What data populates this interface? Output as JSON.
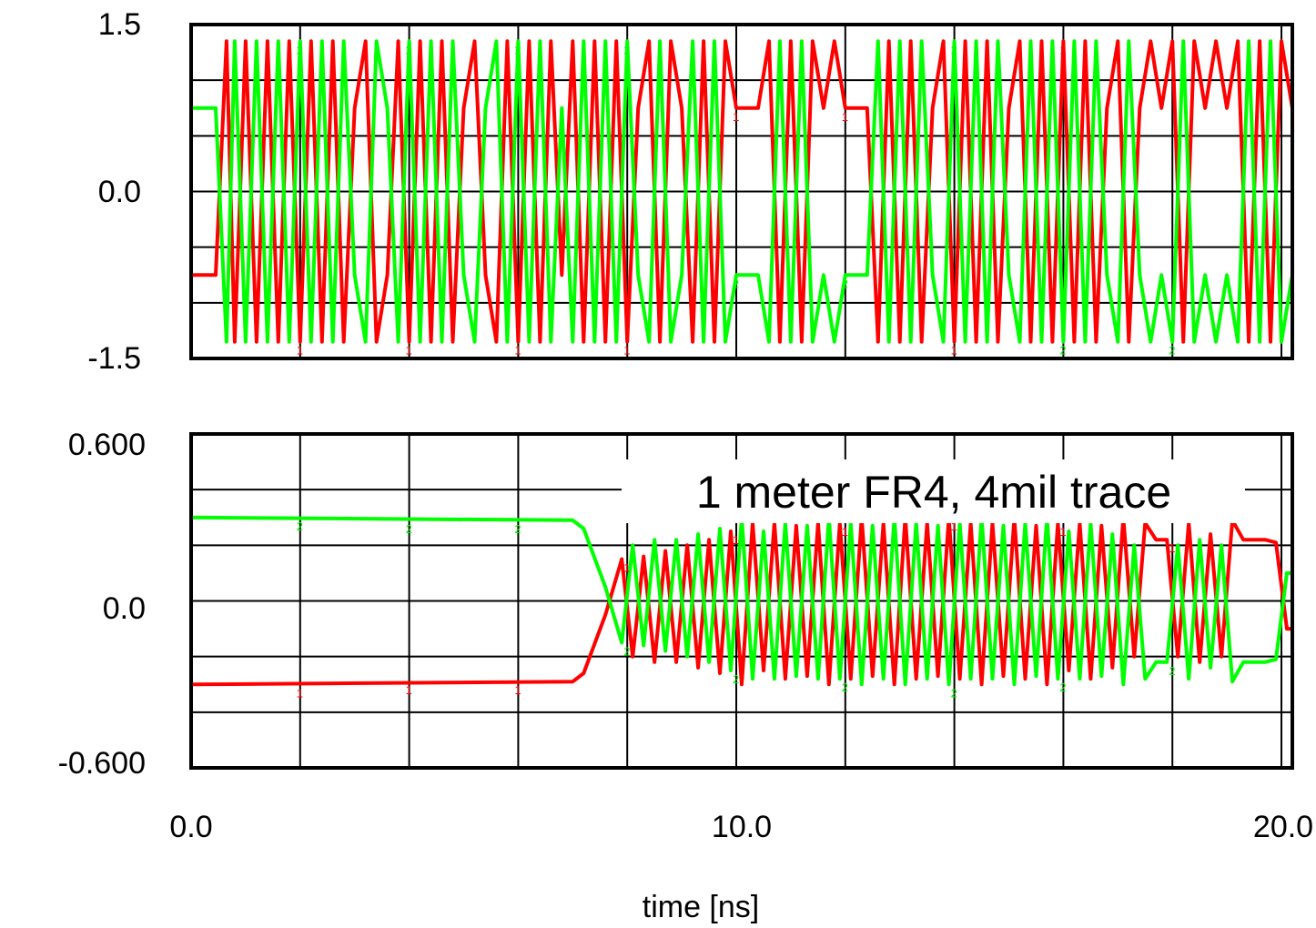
{
  "chart_data": [
    {
      "type": "line",
      "title": "",
      "xlabel": "",
      "ylabel": "",
      "xlim": [
        0,
        20.2
      ],
      "ylim": [
        -1.5,
        1.5
      ],
      "ytick_labels": [
        "1.5",
        "0.0",
        "-1.5"
      ],
      "grid": true,
      "series": [
        {
          "id": "1",
          "color": "#ff0000",
          "base_level": -0.75,
          "description_values": "4-level (PAM-4) digital signal, levels -1.35, -0.75, 0.75, 1.35",
          "x": [
            0,
            0.45,
            0.65,
            0.8,
            1.0,
            1.2,
            1.4,
            1.6,
            1.8,
            2.0,
            2.2,
            2.4,
            2.6,
            2.8,
            3.0,
            3.2,
            3.4,
            3.6,
            3.8,
            4.0,
            4.2,
            4.4,
            4.6,
            4.8,
            5.0,
            5.2,
            5.4,
            5.6,
            5.8,
            6.0,
            6.2,
            6.4,
            6.6,
            6.8,
            7.0,
            7.2,
            7.4,
            7.6,
            7.8,
            8.0,
            8.2,
            8.4,
            8.6,
            8.8,
            9.0,
            9.2,
            9.4,
            9.6,
            9.8,
            10.0,
            10.2,
            10.4,
            10.6,
            10.8,
            11.0,
            11.2,
            11.4,
            11.6,
            11.8,
            12.0,
            12.2,
            12.4,
            12.6,
            12.8,
            13.0,
            13.2,
            13.4,
            13.6,
            13.8,
            14.0,
            14.2,
            14.4,
            14.6,
            14.8,
            15.0,
            15.2,
            15.4,
            15.6,
            15.8,
            16.0,
            16.2,
            16.4,
            16.6,
            16.8,
            17.0,
            17.2,
            17.4,
            17.6,
            17.8,
            18.0,
            18.2,
            18.4,
            18.6,
            18.8,
            19.0,
            19.2,
            19.4,
            19.6,
            19.8,
            20.0,
            20.2
          ],
          "y": [
            -0.75,
            -0.75,
            1.35,
            -1.35,
            1.35,
            -1.35,
            1.35,
            -1.35,
            1.35,
            -1.35,
            1.35,
            -1.35,
            1.35,
            -1.35,
            0.75,
            1.35,
            -1.35,
            -0.75,
            1.35,
            -1.35,
            1.35,
            -1.35,
            1.35,
            -1.35,
            0.75,
            1.35,
            -0.75,
            -1.35,
            1.35,
            -1.35,
            1.35,
            -1.35,
            1.35,
            -0.75,
            1.35,
            -1.35,
            1.35,
            -1.35,
            1.35,
            -1.35,
            0.75,
            1.35,
            -1.35,
            1.35,
            0.75,
            -1.35,
            1.35,
            -1.35,
            1.35,
            0.75,
            0.75,
            0.75,
            1.35,
            -1.35,
            1.35,
            -1.35,
            1.35,
            0.75,
            1.35,
            0.75,
            0.75,
            0.75,
            -1.35,
            1.35,
            -1.35,
            1.35,
            -1.35,
            0.75,
            1.35,
            -1.35,
            1.35,
            -1.35,
            1.35,
            -1.35,
            0.75,
            1.35,
            -1.35,
            1.35,
            -1.35,
            1.35,
            -1.35,
            1.35,
            -1.35,
            0.75,
            1.35,
            -1.35,
            0.75,
            1.35,
            0.75,
            1.35,
            -1.35,
            1.35,
            0.75,
            1.35,
            0.75,
            1.35,
            -1.35,
            1.35,
            -1.35,
            1.35,
            0.75
          ]
        },
        {
          "id": "2",
          "color": "#00ff00",
          "base_level": 0.75,
          "x": [
            0,
            0.45,
            0.65,
            0.8,
            1.0,
            1.2,
            1.4,
            1.6,
            1.8,
            2.0,
            2.2,
            2.4,
            2.6,
            2.8,
            3.0,
            3.2,
            3.4,
            3.6,
            3.8,
            4.0,
            4.2,
            4.4,
            4.6,
            4.8,
            5.0,
            5.2,
            5.4,
            5.6,
            5.8,
            6.0,
            6.2,
            6.4,
            6.6,
            6.8,
            7.0,
            7.2,
            7.4,
            7.6,
            7.8,
            8.0,
            8.2,
            8.4,
            8.6,
            8.8,
            9.0,
            9.2,
            9.4,
            9.6,
            9.8,
            10.0,
            10.2,
            10.4,
            10.6,
            10.8,
            11.0,
            11.2,
            11.4,
            11.6,
            11.8,
            12.0,
            12.2,
            12.4,
            12.6,
            12.8,
            13.0,
            13.2,
            13.4,
            13.6,
            13.8,
            14.0,
            14.2,
            14.4,
            14.6,
            14.8,
            15.0,
            15.2,
            15.4,
            15.6,
            15.8,
            16.0,
            16.2,
            16.4,
            16.6,
            16.8,
            17.0,
            17.2,
            17.4,
            17.6,
            17.8,
            18.0,
            18.2,
            18.4,
            18.6,
            18.8,
            19.0,
            19.2,
            19.4,
            19.6,
            19.8,
            20.0,
            20.2
          ],
          "y": [
            0.75,
            0.75,
            -1.35,
            1.35,
            -1.35,
            1.35,
            -1.35,
            1.35,
            -1.35,
            1.35,
            -1.35,
            1.35,
            -1.35,
            1.35,
            -0.75,
            -1.35,
            1.35,
            0.75,
            -1.35,
            1.35,
            -1.35,
            1.35,
            -1.35,
            1.35,
            -0.75,
            -1.35,
            0.75,
            1.35,
            -1.35,
            1.35,
            -1.35,
            1.35,
            -1.35,
            0.75,
            -1.35,
            1.35,
            -1.35,
            1.35,
            -1.35,
            1.35,
            -0.75,
            -1.35,
            1.35,
            -1.35,
            -0.75,
            1.35,
            -1.35,
            1.35,
            -1.35,
            -0.75,
            -0.75,
            -0.75,
            -1.35,
            1.35,
            -1.35,
            1.35,
            -1.35,
            -0.75,
            -1.35,
            -0.75,
            -0.75,
            -0.75,
            1.35,
            -1.35,
            1.35,
            -1.35,
            1.35,
            -0.75,
            -1.35,
            1.35,
            -1.35,
            1.35,
            -1.35,
            1.35,
            -0.75,
            -1.35,
            1.35,
            -1.35,
            1.35,
            -1.35,
            1.35,
            -1.35,
            1.35,
            -0.75,
            -1.35,
            1.35,
            -0.75,
            -1.35,
            -0.75,
            -1.35,
            1.35,
            -1.35,
            -0.75,
            -1.35,
            -0.75,
            -1.35,
            1.35,
            -1.35,
            1.35,
            -1.35,
            -0.75
          ]
        }
      ]
    },
    {
      "type": "line",
      "title": "",
      "annotation": "1 meter FR4, 4mil trace",
      "xlabel": "time [ns]",
      "ylabel": "",
      "xlim": [
        0,
        20.2
      ],
      "ylim": [
        -0.6,
        0.6
      ],
      "xtick_labels": [
        "0.0",
        "10.0",
        "20.0"
      ],
      "ytick_labels": [
        "0.600",
        "0.0",
        "-0.600"
      ],
      "grid": true,
      "series": [
        {
          "id": "1",
          "color": "#ff0000",
          "x": [
            0,
            7.0,
            7.2,
            7.6,
            7.9,
            8.1,
            8.3,
            8.5,
            8.7,
            8.9,
            9.1,
            9.3,
            9.5,
            9.7,
            9.9,
            10.1,
            10.3,
            10.5,
            10.7,
            10.9,
            11.1,
            11.3,
            11.5,
            11.7,
            11.9,
            12.1,
            12.3,
            12.5,
            12.7,
            12.9,
            13.1,
            13.3,
            13.5,
            13.7,
            13.9,
            14.1,
            14.3,
            14.5,
            14.7,
            14.9,
            15.1,
            15.3,
            15.5,
            15.7,
            15.9,
            16.1,
            16.3,
            16.5,
            16.7,
            16.9,
            17.1,
            17.3,
            17.5,
            17.7,
            17.9,
            18.1,
            18.3,
            18.5,
            18.7,
            18.9,
            19.1,
            19.3,
            19.5,
            19.7,
            19.9,
            20.1,
            20.2
          ],
          "y": [
            -0.3,
            -0.29,
            -0.26,
            -0.05,
            0.15,
            -0.2,
            0.16,
            -0.22,
            0.18,
            -0.22,
            0.2,
            -0.24,
            0.22,
            -0.26,
            0.25,
            -0.3,
            0.28,
            -0.25,
            0.28,
            -0.28,
            0.27,
            -0.27,
            0.28,
            -0.3,
            0.28,
            -0.28,
            0.3,
            -0.27,
            0.28,
            -0.3,
            0.3,
            -0.28,
            0.28,
            -0.27,
            0.3,
            -0.28,
            0.28,
            -0.3,
            0.28,
            -0.27,
            0.3,
            -0.28,
            0.27,
            -0.3,
            0.28,
            -0.25,
            0.28,
            -0.28,
            0.27,
            -0.24,
            0.3,
            -0.2,
            0.28,
            0.22,
            0.22,
            -0.2,
            0.28,
            -0.22,
            0.24,
            -0.2,
            0.29,
            0.22,
            0.22,
            0.22,
            0.21,
            -0.1,
            -0.1
          ]
        },
        {
          "id": "2",
          "color": "#00ff00",
          "x": [
            0,
            7.0,
            7.2,
            7.6,
            7.9,
            8.1,
            8.3,
            8.5,
            8.7,
            8.9,
            9.1,
            9.3,
            9.5,
            9.7,
            9.9,
            10.1,
            10.3,
            10.5,
            10.7,
            10.9,
            11.1,
            11.3,
            11.5,
            11.7,
            11.9,
            12.1,
            12.3,
            12.5,
            12.7,
            12.9,
            13.1,
            13.3,
            13.5,
            13.7,
            13.9,
            14.1,
            14.3,
            14.5,
            14.7,
            14.9,
            15.1,
            15.3,
            15.5,
            15.7,
            15.9,
            16.1,
            16.3,
            16.5,
            16.7,
            16.9,
            17.1,
            17.3,
            17.5,
            17.7,
            17.9,
            18.1,
            18.3,
            18.5,
            18.7,
            18.9,
            19.1,
            19.3,
            19.5,
            19.7,
            19.9,
            20.1,
            20.2
          ],
          "y": [
            0.3,
            0.29,
            0.26,
            0.05,
            -0.15,
            0.2,
            -0.16,
            0.22,
            -0.18,
            0.22,
            -0.2,
            0.24,
            -0.22,
            0.26,
            -0.25,
            0.3,
            -0.28,
            0.25,
            -0.28,
            0.28,
            -0.27,
            0.27,
            -0.28,
            0.3,
            -0.28,
            0.28,
            -0.3,
            0.27,
            -0.28,
            0.3,
            -0.3,
            0.28,
            -0.28,
            0.27,
            -0.3,
            0.28,
            -0.28,
            0.3,
            -0.28,
            0.27,
            -0.3,
            0.28,
            -0.27,
            0.3,
            -0.28,
            0.25,
            -0.28,
            0.28,
            -0.27,
            0.24,
            -0.3,
            0.2,
            -0.28,
            -0.22,
            -0.22,
            0.2,
            -0.28,
            0.22,
            -0.24,
            0.2,
            -0.29,
            -0.22,
            -0.22,
            -0.22,
            -0.21,
            0.1,
            0.1
          ]
        }
      ]
    }
  ]
}
